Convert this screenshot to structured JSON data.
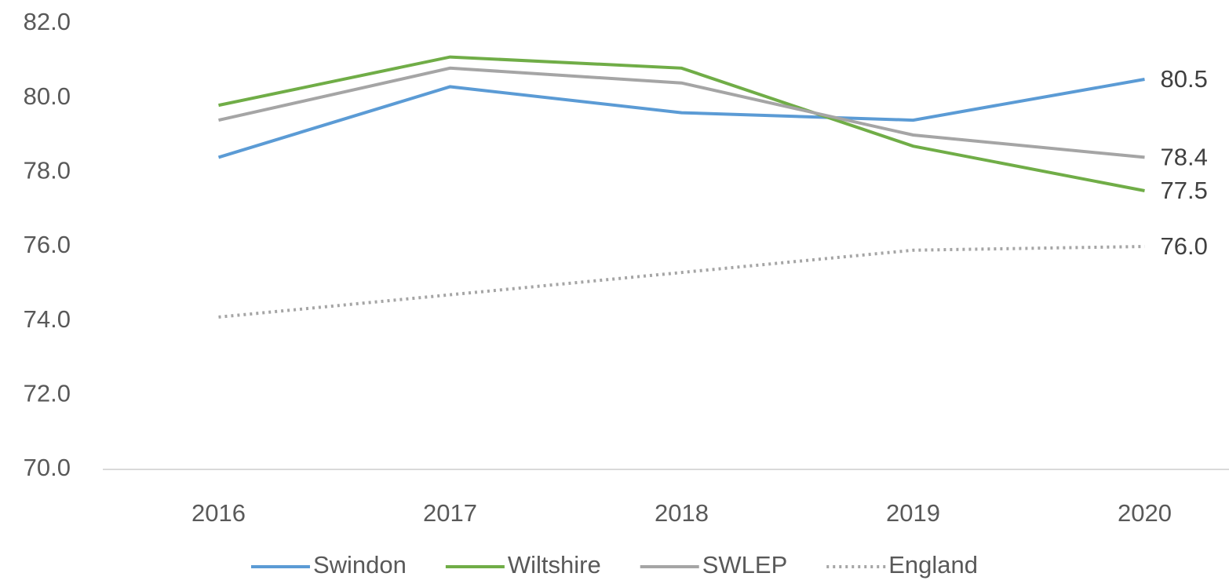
{
  "chart_data": {
    "type": "line",
    "categories": [
      "2016",
      "2017",
      "2018",
      "2019",
      "2020"
    ],
    "series": [
      {
        "name": "Swindon",
        "color": "#5b9bd5",
        "dash": "solid",
        "values": [
          78.4,
          80.3,
          79.6,
          79.4,
          80.5
        ],
        "value_labels": [
          null,
          null,
          null,
          null,
          "80.5"
        ]
      },
      {
        "name": "Wiltshire",
        "color": "#70ad47",
        "dash": "solid",
        "values": [
          79.8,
          81.1,
          80.8,
          78.7,
          77.5
        ],
        "value_labels": [
          null,
          null,
          null,
          null,
          "77.5"
        ]
      },
      {
        "name": "SWLEP",
        "color": "#a5a5a5",
        "dash": "solid",
        "values": [
          79.4,
          80.8,
          80.4,
          79.0,
          78.4
        ],
        "value_labels": [
          null,
          null,
          null,
          null,
          "78.4"
        ]
      },
      {
        "name": "England",
        "color": "#a5a5a5",
        "dash": "dotted",
        "values": [
          74.1,
          74.7,
          75.3,
          75.9,
          76.0
        ],
        "value_labels": [
          null,
          null,
          null,
          null,
          "76.0"
        ]
      }
    ],
    "ylim": [
      70,
      82
    ],
    "yticks": [
      {
        "value": 70,
        "label": "70.0"
      },
      {
        "value": 72,
        "label": "72.0"
      },
      {
        "value": 74,
        "label": "74.0"
      },
      {
        "value": 76,
        "label": "76.0"
      },
      {
        "value": 78,
        "label": "78.0"
      },
      {
        "value": 80,
        "label": "80.0"
      },
      {
        "value": 82,
        "label": "82.0"
      }
    ],
    "grid": false,
    "legend": "bottom"
  }
}
